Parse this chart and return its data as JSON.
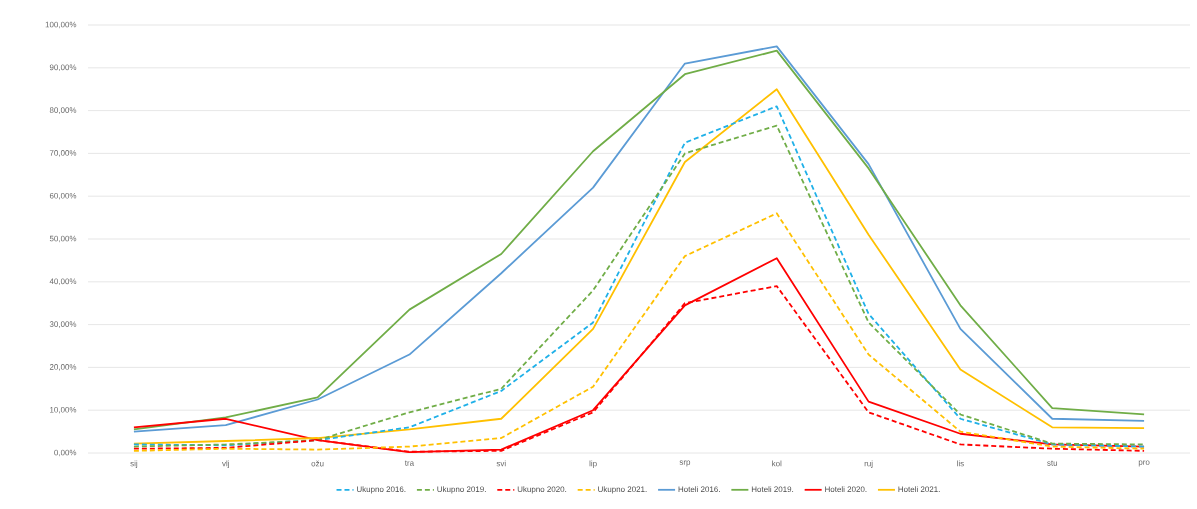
{
  "chart_data": {
    "type": "line",
    "categories": [
      "sij",
      "vlj",
      "ožu",
      "tra",
      "svi",
      "lip",
      "srp",
      "kol",
      "ruj",
      "lis",
      "stu",
      "pro"
    ],
    "ylim": [
      0,
      1.0
    ],
    "yticks": [
      {
        "value": 0,
        "label": "0,00%"
      },
      {
        "value": 0.1,
        "label": "10,00%"
      },
      {
        "value": 0.2,
        "label": "20,00%"
      },
      {
        "value": 0.3,
        "label": "30,00%"
      },
      {
        "value": 0.4,
        "label": "40,00%"
      },
      {
        "value": 0.5,
        "label": "50,00%"
      },
      {
        "value": 0.6,
        "label": "60,00%"
      },
      {
        "value": 0.7,
        "label": "70,00%"
      },
      {
        "value": 0.8,
        "label": "80,00%"
      },
      {
        "value": 0.9,
        "label": "90,00%"
      },
      {
        "value": 1.0,
        "label": "100,00%"
      }
    ],
    "grid": "y",
    "legend": "bottom",
    "series": [
      {
        "name": "Ukupno 2016.",
        "color": "#1fb0e8",
        "line_style": "dashed",
        "values": [
          0.02,
          0.018,
          0.03,
          0.06,
          0.145,
          0.305,
          0.725,
          0.81,
          0.325,
          0.08,
          0.02,
          0.015
        ]
      },
      {
        "name": "Ukupno 2019.",
        "color": "#70ad47",
        "line_style": "dashed",
        "values": [
          0.015,
          0.02,
          0.03,
          0.095,
          0.15,
          0.38,
          0.7,
          0.765,
          0.305,
          0.09,
          0.022,
          0.02
        ]
      },
      {
        "name": "Ukupno 2020.",
        "color": "#ff0000",
        "line_style": "dashed",
        "values": [
          0.01,
          0.012,
          0.03,
          0.003,
          0.005,
          0.095,
          0.35,
          0.39,
          0.095,
          0.02,
          0.01,
          0.005
        ]
      },
      {
        "name": "Ukupno 2021.",
        "color": "#ffc000",
        "line_style": "dashed",
        "values": [
          0.005,
          0.01,
          0.008,
          0.015,
          0.035,
          0.155,
          0.46,
          0.56,
          0.23,
          0.05,
          0.015,
          0.01
        ]
      },
      {
        "name": "Hoteli 2016.",
        "color": "#5b9bd5",
        "line_style": "solid",
        "values": [
          0.05,
          0.065,
          0.125,
          0.23,
          0.42,
          0.62,
          0.91,
          0.95,
          0.675,
          0.29,
          0.08,
          0.075
        ]
      },
      {
        "name": "Hoteli 2019.",
        "color": "#70ad47",
        "line_style": "solid",
        "values": [
          0.055,
          0.083,
          0.13,
          0.335,
          0.465,
          0.705,
          0.885,
          0.94,
          0.665,
          0.345,
          0.105,
          0.09
        ]
      },
      {
        "name": "Hoteli 2020.",
        "color": "#ff0000",
        "line_style": "solid",
        "values": [
          0.06,
          0.08,
          0.03,
          0.002,
          0.008,
          0.1,
          0.345,
          0.455,
          0.12,
          0.045,
          0.02,
          0.015
        ]
      },
      {
        "name": "Hoteli 2021.",
        "color": "#ffc000",
        "line_style": "solid",
        "values": [
          0.022,
          0.028,
          0.035,
          0.055,
          0.08,
          0.29,
          0.68,
          0.85,
          0.51,
          0.195,
          0.06,
          0.058
        ]
      }
    ]
  }
}
